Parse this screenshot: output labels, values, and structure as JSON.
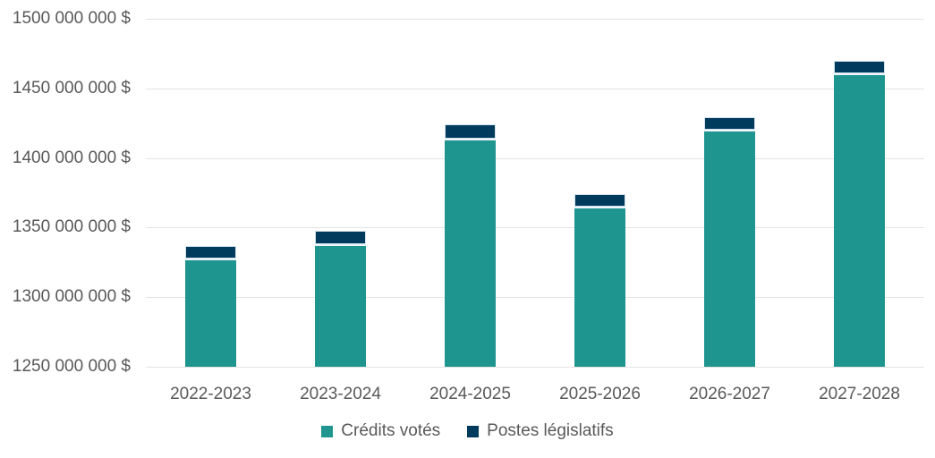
{
  "chart_data": {
    "type": "bar",
    "stacked": true,
    "title": "",
    "xlabel": "",
    "ylabel": "",
    "grid": true,
    "legend_position": "bottom",
    "categories": [
      "2022-2023",
      "2023-2024",
      "2024-2025",
      "2025-2026",
      "2026-2027",
      "2027-2028"
    ],
    "series": [
      {
        "name": "Crédits votés",
        "color": "#1F958F",
        "values": [
          1328000000,
          1338000000,
          1414000000,
          1365000000,
          1420000000,
          1461000000
        ]
      },
      {
        "name": "Postes législatifs",
        "color": "#003A5D",
        "values": [
          9000000,
          10000000,
          10000000,
          9000000,
          9000000,
          9000000
        ]
      }
    ],
    "ylim": [
      1250000000,
      1500000000
    ],
    "ytick_step": 50000000,
    "ytick_labels_top_to_bottom": [
      "1500 000 000 $",
      "1450 000 000 $",
      "1400 000 000 $",
      "1350 000 000 $",
      "1300 000 000 $",
      "1250 000 000 $"
    ]
  },
  "colors": {
    "teal": "#1F958F",
    "navy": "#003A5D",
    "gridline": "#E4E4E4",
    "axis_text": "#595959",
    "background": "#FFFFFF"
  }
}
